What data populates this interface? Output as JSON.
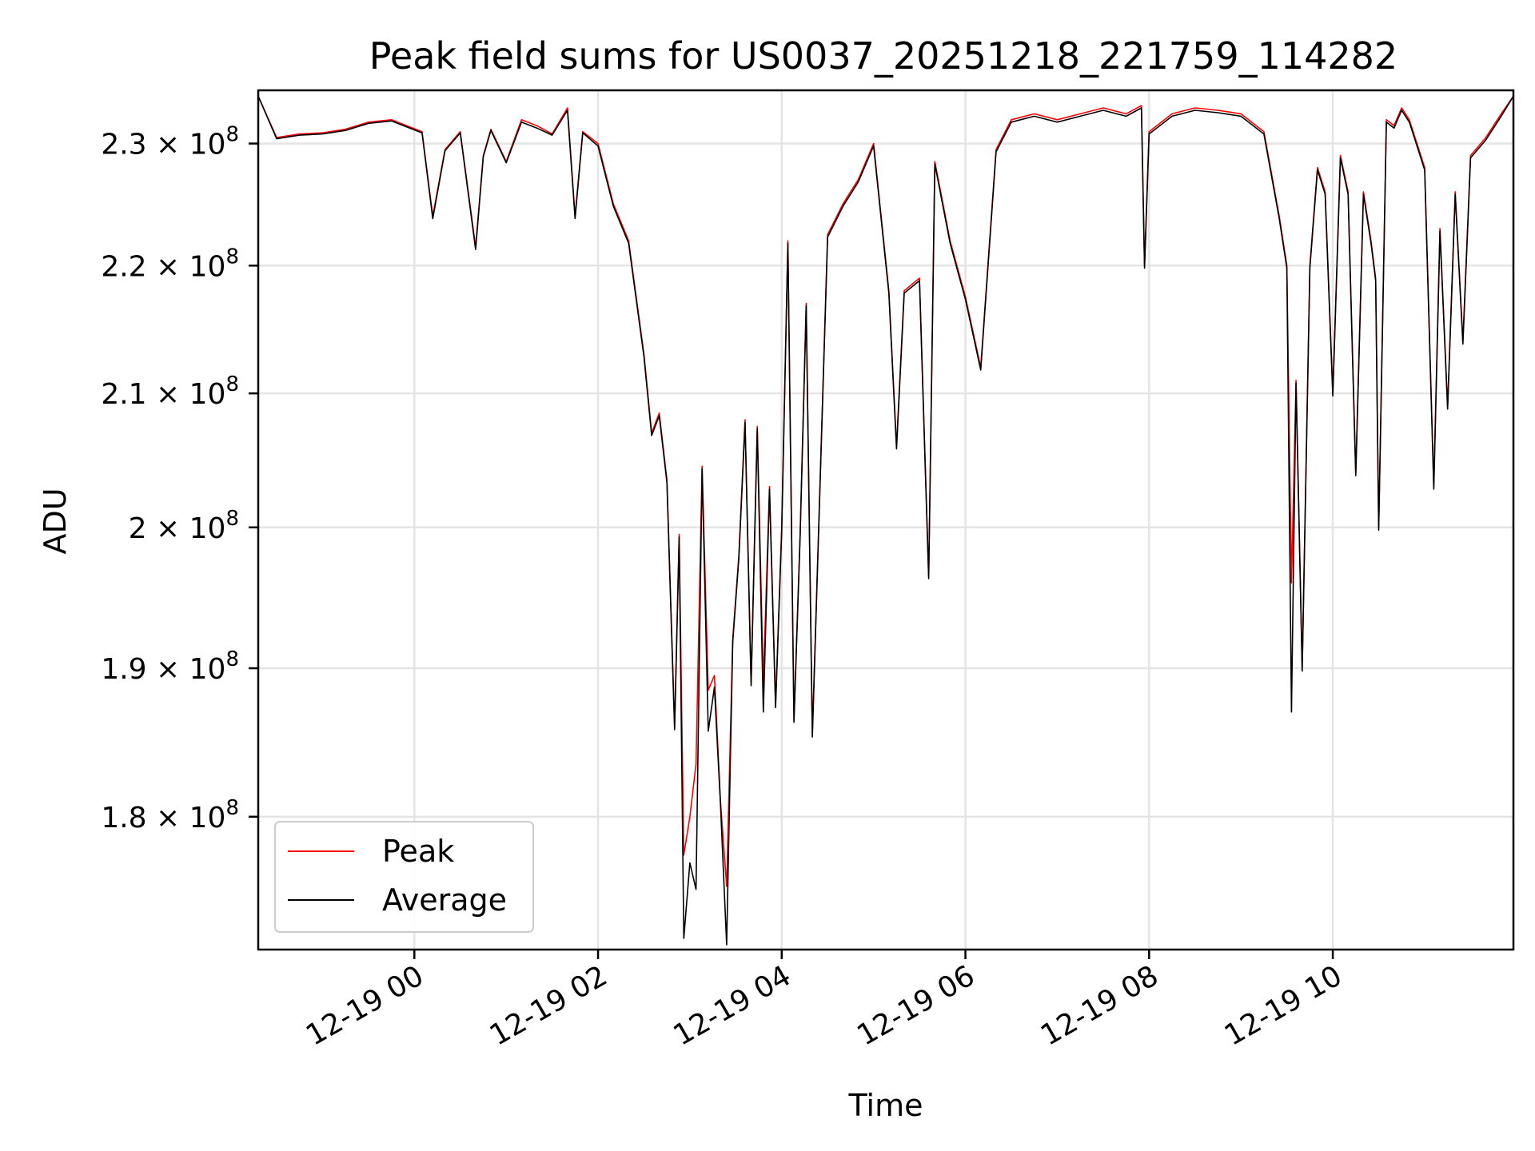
{
  "chart_data": {
    "type": "line",
    "title": "Peak field sums for US0037_20251218_221759_114282",
    "xlabel": "Time",
    "ylabel": "ADU",
    "y_scale": "log",
    "xlim": [
      "2025-12-18 22:18",
      "2025-12-19 11:58"
    ],
    "ylim": [
      171500000,
      234500000
    ],
    "x_ticks": [
      "2025-12-19 00:00",
      "2025-12-19 02:00",
      "2025-12-19 04:00",
      "2025-12-19 06:00",
      "2025-12-19 08:00",
      "2025-12-19 10:00"
    ],
    "x_tick_labels": [
      "12-19 00",
      "12-19 02",
      "12-19 04",
      "12-19 06",
      "12-19 08",
      "12-19 10"
    ],
    "y_ticks": [
      {
        "value": 180000000,
        "mantissa": "1.8"
      },
      {
        "value": 190000000,
        "mantissa": "1.9"
      },
      {
        "value": 200000000,
        "mantissa": "2"
      },
      {
        "value": 210000000,
        "mantissa": "2.1"
      },
      {
        "value": 220000000,
        "mantissa": "2.2"
      },
      {
        "value": 230000000,
        "mantissa": "2.3"
      }
    ],
    "y_tick_base": "10",
    "y_tick_exponent": "8",
    "grid": true,
    "legend_position": "lower-left",
    "colors": {
      "Peak": "#ff0000",
      "Average": "#000000"
    },
    "series": [
      {
        "name": "Peak",
        "x": [
          "2025-12-18 22:18",
          "2025-12-18 22:30",
          "2025-12-18 22:45",
          "2025-12-18 23:00",
          "2025-12-18 23:15",
          "2025-12-18 23:30",
          "2025-12-18 23:45",
          "2025-12-19 00:05",
          "2025-12-19 00:12",
          "2025-12-19 00:20",
          "2025-12-19 00:30",
          "2025-12-19 00:40",
          "2025-12-19 00:45",
          "2025-12-19 00:50",
          "2025-12-19 01:00",
          "2025-12-19 01:10",
          "2025-12-19 01:20",
          "2025-12-19 01:30",
          "2025-12-19 01:40",
          "2025-12-19 01:45",
          "2025-12-19 01:50",
          "2025-12-19 02:00",
          "2025-12-19 02:10",
          "2025-12-19 02:20",
          "2025-12-19 02:30",
          "2025-12-19 02:35",
          "2025-12-19 02:40",
          "2025-12-19 02:45",
          "2025-12-19 02:50",
          "2025-12-19 02:53",
          "2025-12-19 02:56",
          "2025-12-19 03:00",
          "2025-12-19 03:04",
          "2025-12-19 03:08",
          "2025-12-19 03:12",
          "2025-12-19 03:16",
          "2025-12-19 03:20",
          "2025-12-19 03:24",
          "2025-12-19 03:28",
          "2025-12-19 03:32",
          "2025-12-19 03:36",
          "2025-12-19 03:40",
          "2025-12-19 03:44",
          "2025-12-19 03:48",
          "2025-12-19 03:52",
          "2025-12-19 03:56",
          "2025-12-19 04:00",
          "2025-12-19 04:04",
          "2025-12-19 04:08",
          "2025-12-19 04:12",
          "2025-12-19 04:16",
          "2025-12-19 04:20",
          "2025-12-19 04:30",
          "2025-12-19 04:40",
          "2025-12-19 04:50",
          "2025-12-19 05:00",
          "2025-12-19 05:10",
          "2025-12-19 05:15",
          "2025-12-19 05:20",
          "2025-12-19 05:30",
          "2025-12-19 05:36",
          "2025-12-19 05:40",
          "2025-12-19 05:50",
          "2025-12-19 06:00",
          "2025-12-19 06:10",
          "2025-12-19 06:20",
          "2025-12-19 06:30",
          "2025-12-19 06:45",
          "2025-12-19 07:00",
          "2025-12-19 07:15",
          "2025-12-19 07:30",
          "2025-12-19 07:45",
          "2025-12-19 07:55",
          "2025-12-19 07:57",
          "2025-12-19 08:00",
          "2025-12-19 08:15",
          "2025-12-19 08:30",
          "2025-12-19 08:45",
          "2025-12-19 09:00",
          "2025-12-19 09:15",
          "2025-12-19 09:25",
          "2025-12-19 09:30",
          "2025-12-19 09:33",
          "2025-12-19 09:36",
          "2025-12-19 09:40",
          "2025-12-19 09:45",
          "2025-12-19 09:50",
          "2025-12-19 09:55",
          "2025-12-19 10:00",
          "2025-12-19 10:05",
          "2025-12-19 10:10",
          "2025-12-19 10:15",
          "2025-12-19 10:20",
          "2025-12-19 10:25",
          "2025-12-19 10:28",
          "2025-12-19 10:30",
          "2025-12-19 10:35",
          "2025-12-19 10:40",
          "2025-12-19 10:45",
          "2025-12-19 10:50",
          "2025-12-19 10:55",
          "2025-12-19 11:00",
          "2025-12-19 11:06",
          "2025-12-19 11:10",
          "2025-12-19 11:15",
          "2025-12-19 11:20",
          "2025-12-19 11:25",
          "2025-12-19 11:30",
          "2025-12-19 11:40",
          "2025-12-19 11:50",
          "2025-12-19 11:58"
        ],
        "values": [
          234000000,
          230500000,
          230800000,
          230900000,
          231200000,
          231800000,
          232000000,
          231000000,
          224000000,
          229500000,
          231000000,
          221500000,
          229000000,
          231200000,
          228500000,
          232000000,
          231500000,
          230800000,
          233000000,
          224000000,
          231000000,
          230000000,
          225000000,
          222000000,
          213000000,
          207000000,
          208500000,
          203500000,
          186000000,
          199500000,
          177500000,
          180000000,
          183500000,
          204500000,
          188500000,
          189500000,
          181000000,
          175500000,
          192000000,
          198000000,
          208000000,
          189000000,
          207500000,
          189000000,
          203000000,
          187500000,
          200000000,
          222000000,
          186500000,
          199500000,
          217000000,
          185500000,
          222500000,
          225000000,
          227000000,
          230000000,
          218000000,
          206000000,
          218000000,
          219000000,
          196500000,
          228500000,
          222000000,
          217500000,
          212000000,
          229500000,
          232000000,
          232500000,
          232000000,
          232500000,
          233000000,
          232500000,
          233200000,
          220000000,
          231000000,
          232500000,
          233000000,
          232800000,
          232500000,
          231000000,
          224000000,
          220000000,
          196000000,
          211000000,
          190000000,
          220000000,
          228000000,
          226000000,
          210000000,
          229000000,
          226000000,
          204000000,
          226000000,
          222000000,
          219000000,
          200000000,
          232000000,
          231500000,
          233000000,
          232000000,
          230000000,
          228000000,
          203000000,
          223000000,
          209000000,
          226000000,
          214000000,
          229000000,
          230500000,
          232500000,
          234000000
        ]
      },
      {
        "name": "Average",
        "x": [
          "2025-12-18 22:18",
          "2025-12-18 22:30",
          "2025-12-18 22:45",
          "2025-12-18 23:00",
          "2025-12-18 23:15",
          "2025-12-18 23:30",
          "2025-12-18 23:45",
          "2025-12-19 00:05",
          "2025-12-19 00:12",
          "2025-12-19 00:20",
          "2025-12-19 00:30",
          "2025-12-19 00:40",
          "2025-12-19 00:45",
          "2025-12-19 00:50",
          "2025-12-19 01:00",
          "2025-12-19 01:10",
          "2025-12-19 01:20",
          "2025-12-19 01:30",
          "2025-12-19 01:40",
          "2025-12-19 01:45",
          "2025-12-19 01:50",
          "2025-12-19 02:00",
          "2025-12-19 02:10",
          "2025-12-19 02:20",
          "2025-12-19 02:30",
          "2025-12-19 02:35",
          "2025-12-19 02:40",
          "2025-12-19 02:45",
          "2025-12-19 02:50",
          "2025-12-19 02:53",
          "2025-12-19 02:56",
          "2025-12-19 03:00",
          "2025-12-19 03:04",
          "2025-12-19 03:08",
          "2025-12-19 03:12",
          "2025-12-19 03:16",
          "2025-12-19 03:20",
          "2025-12-19 03:24",
          "2025-12-19 03:28",
          "2025-12-19 03:32",
          "2025-12-19 03:36",
          "2025-12-19 03:40",
          "2025-12-19 03:44",
          "2025-12-19 03:48",
          "2025-12-19 03:52",
          "2025-12-19 03:56",
          "2025-12-19 04:00",
          "2025-12-19 04:04",
          "2025-12-19 04:08",
          "2025-12-19 04:12",
          "2025-12-19 04:16",
          "2025-12-19 04:20",
          "2025-12-19 04:30",
          "2025-12-19 04:40",
          "2025-12-19 04:50",
          "2025-12-19 05:00",
          "2025-12-19 05:10",
          "2025-12-19 05:15",
          "2025-12-19 05:20",
          "2025-12-19 05:30",
          "2025-12-19 05:36",
          "2025-12-19 05:40",
          "2025-12-19 05:50",
          "2025-12-19 06:00",
          "2025-12-19 06:10",
          "2025-12-19 06:20",
          "2025-12-19 06:30",
          "2025-12-19 06:45",
          "2025-12-19 07:00",
          "2025-12-19 07:15",
          "2025-12-19 07:30",
          "2025-12-19 07:45",
          "2025-12-19 07:55",
          "2025-12-19 07:57",
          "2025-12-19 08:00",
          "2025-12-19 08:15",
          "2025-12-19 08:30",
          "2025-12-19 08:45",
          "2025-12-19 09:00",
          "2025-12-19 09:15",
          "2025-12-19 09:25",
          "2025-12-19 09:30",
          "2025-12-19 09:33",
          "2025-12-19 09:36",
          "2025-12-19 09:40",
          "2025-12-19 09:45",
          "2025-12-19 09:50",
          "2025-12-19 09:55",
          "2025-12-19 10:00",
          "2025-12-19 10:05",
          "2025-12-19 10:10",
          "2025-12-19 10:15",
          "2025-12-19 10:20",
          "2025-12-19 10:25",
          "2025-12-19 10:28",
          "2025-12-19 10:30",
          "2025-12-19 10:35",
          "2025-12-19 10:40",
          "2025-12-19 10:45",
          "2025-12-19 10:50",
          "2025-12-19 10:55",
          "2025-12-19 11:00",
          "2025-12-19 11:06",
          "2025-12-19 11:10",
          "2025-12-19 11:15",
          "2025-12-19 11:20",
          "2025-12-19 11:25",
          "2025-12-19 11:30",
          "2025-12-19 11:40",
          "2025-12-19 11:50",
          "2025-12-19 11:58"
        ],
        "values": [
          234000000,
          230400000,
          230700000,
          230800000,
          231100000,
          231700000,
          231900000,
          230900000,
          223800000,
          229400000,
          230900000,
          221300000,
          228900000,
          231100000,
          228400000,
          231800000,
          231300000,
          230700000,
          232800000,
          223800000,
          230900000,
          229800000,
          224800000,
          221800000,
          212800000,
          206800000,
          208300000,
          203300000,
          185800000,
          199300000,
          172200000,
          177000000,
          175300000,
          204300000,
          185700000,
          188700000,
          180800000,
          171800000,
          191800000,
          197800000,
          207800000,
          188800000,
          207300000,
          187000000,
          202800000,
          187300000,
          199800000,
          221800000,
          186300000,
          199300000,
          216800000,
          185300000,
          222300000,
          224800000,
          226800000,
          229800000,
          217800000,
          205800000,
          217800000,
          218800000,
          196300000,
          228300000,
          221800000,
          217300000,
          211800000,
          229300000,
          231800000,
          232300000,
          231800000,
          232300000,
          232800000,
          232300000,
          233000000,
          219800000,
          230800000,
          232300000,
          232800000,
          232600000,
          232300000,
          230800000,
          223800000,
          219800000,
          187000000,
          210800000,
          189800000,
          219800000,
          227800000,
          225800000,
          209800000,
          228800000,
          225800000,
          203800000,
          225800000,
          221800000,
          218800000,
          199800000,
          231800000,
          231300000,
          232800000,
          231800000,
          229800000,
          227800000,
          202800000,
          222800000,
          208800000,
          225800000,
          213800000,
          228800000,
          230300000,
          232300000,
          234000000
        ]
      }
    ]
  }
}
